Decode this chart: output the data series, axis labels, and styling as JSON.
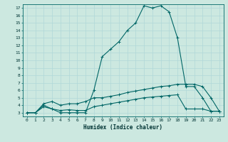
{
  "xlabel": "Humidex (Indice chaleur)",
  "background_color": "#cce8e0",
  "grid_color": "#aacccc",
  "line_color": "#006666",
  "xlim": [
    -0.5,
    23.5
  ],
  "ylim": [
    2.5,
    17.5
  ],
  "xticks": [
    0,
    1,
    2,
    3,
    4,
    5,
    6,
    7,
    8,
    9,
    10,
    11,
    12,
    13,
    14,
    15,
    16,
    17,
    18,
    19,
    20,
    21,
    22,
    23
  ],
  "yticks": [
    3,
    4,
    5,
    6,
    7,
    8,
    9,
    10,
    11,
    12,
    13,
    14,
    15,
    16,
    17
  ],
  "series1_x": [
    0,
    1,
    2,
    3,
    4,
    5,
    6,
    7,
    8,
    9,
    10,
    11,
    12,
    13,
    14,
    15,
    16,
    17,
    18,
    19,
    20,
    21,
    22,
    23
  ],
  "series1_y": [
    3.0,
    3.0,
    4.0,
    3.5,
    3.0,
    3.0,
    3.0,
    3.0,
    6.0,
    10.5,
    11.5,
    12.5,
    14.0,
    15.0,
    17.3,
    17.0,
    17.3,
    16.5,
    13.0,
    6.5,
    6.5,
    5.0,
    3.2,
    3.2
  ],
  "series2_x": [
    0,
    1,
    2,
    3,
    4,
    5,
    6,
    7,
    8,
    9,
    10,
    11,
    12,
    13,
    14,
    15,
    16,
    17,
    18,
    19,
    20,
    21,
    22,
    23
  ],
  "series2_y": [
    3.0,
    3.0,
    4.2,
    4.5,
    4.0,
    4.2,
    4.2,
    4.5,
    5.0,
    5.0,
    5.2,
    5.4,
    5.7,
    5.9,
    6.1,
    6.3,
    6.5,
    6.6,
    6.8,
    6.8,
    6.8,
    6.5,
    5.0,
    3.2
  ],
  "series3_x": [
    0,
    1,
    2,
    3,
    4,
    5,
    6,
    7,
    8,
    9,
    10,
    11,
    12,
    13,
    14,
    15,
    16,
    17,
    18,
    19,
    20,
    21,
    22,
    23
  ],
  "series3_y": [
    3.0,
    3.0,
    3.8,
    3.5,
    3.3,
    3.4,
    3.3,
    3.3,
    3.8,
    4.0,
    4.2,
    4.4,
    4.6,
    4.8,
    5.0,
    5.1,
    5.2,
    5.3,
    5.4,
    3.5,
    3.5,
    3.5,
    3.2,
    3.2
  ]
}
